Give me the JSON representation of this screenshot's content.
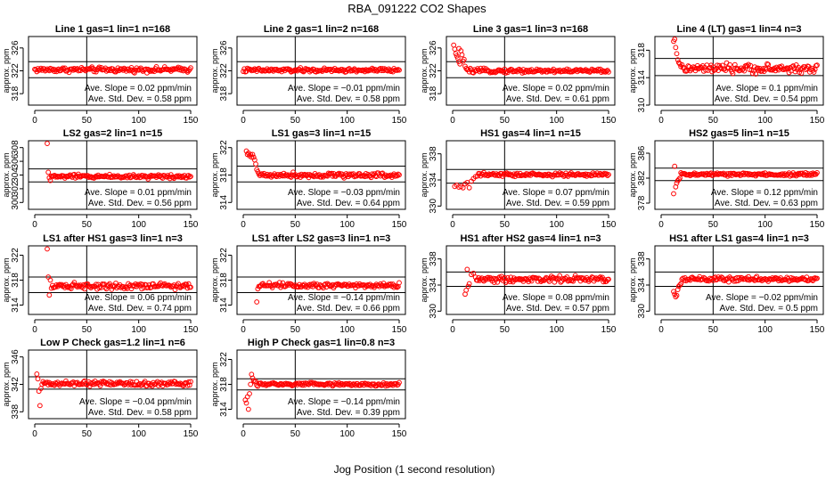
{
  "figure": {
    "title": "RBA_091222  CO2 Shapes",
    "xlabel": "Jog Position (1 second resolution)"
  },
  "chart_data": [
    {
      "type": "scatter",
      "title": "Line 1 gas=1 lin=1 n=168",
      "ylabel": "approx. ppm",
      "xlim": [
        0,
        150
      ],
      "xticks": [
        0,
        50,
        100,
        150
      ],
      "ylim": [
        316,
        328
      ],
      "yticks": [
        318,
        322,
        326
      ],
      "hlines": [
        320.8,
        323.6
      ],
      "vline": 50,
      "baseline": 322.2,
      "noise": 0.3,
      "transient": [],
      "slope_label": "Ave. Slope =  0.02  ppm/min",
      "sd_label": "Ave. Std. Dev. =  0.58  ppm"
    },
    {
      "type": "scatter",
      "title": "Line 2 gas=1 lin=2 n=168",
      "ylabel": "approx. ppm",
      "xlim": [
        0,
        150
      ],
      "xticks": [
        0,
        50,
        100,
        150
      ],
      "ylim": [
        316,
        328
      ],
      "yticks": [
        318,
        322,
        326
      ],
      "hlines": [
        320.8,
        323.6
      ],
      "vline": 50,
      "baseline": 322.1,
      "noise": 0.25,
      "transient": [],
      "slope_label": "Ave. Slope =  −0.01  ppm/min",
      "sd_label": "Ave. Std. Dev. =  0.58  ppm"
    },
    {
      "type": "scatter",
      "title": "Line 3 gas=1 lin=3 n=168",
      "ylabel": "approx. ppm",
      "xlim": [
        0,
        150
      ],
      "xticks": [
        0,
        50,
        100,
        150
      ],
      "ylim": [
        316,
        328
      ],
      "yticks": [
        318,
        322,
        326
      ],
      "hlines": [
        320.8,
        323.6
      ],
      "vline": 50,
      "baseline": 322.0,
      "noise": 0.25,
      "transient": [
        [
          1,
          326.5
        ],
        [
          2,
          325.8
        ],
        [
          3,
          325.0
        ],
        [
          4,
          324.6
        ],
        [
          5,
          324.2
        ],
        [
          6,
          323.6
        ],
        [
          6,
          325.9
        ],
        [
          7,
          323.2
        ],
        [
          8,
          325.5
        ],
        [
          9,
          324.8
        ],
        [
          10,
          323.7
        ],
        [
          11,
          324.0
        ],
        [
          12,
          322.8
        ],
        [
          13,
          322.4
        ],
        [
          14,
          322.2
        ]
      ],
      "slope_label": "Ave. Slope =  0.02  ppm/min",
      "sd_label": "Ave. Std. Dev. =  0.61  ppm"
    },
    {
      "type": "scatter",
      "title": "Line 4 (LT) gas=1 lin=4 n=3",
      "ylabel": "approx. ppm",
      "xlim": [
        0,
        150
      ],
      "xticks": [
        0,
        50,
        100,
        150
      ],
      "ylim": [
        310,
        320
      ],
      "yticks": [
        310,
        314,
        318
      ],
      "hlines": [
        314.3,
        316.8
      ],
      "vline": 50,
      "baseline": 315.3,
      "noise": 0.45,
      "transient": [
        [
          12,
          319.3
        ],
        [
          13,
          319.6
        ],
        [
          14,
          318.4
        ],
        [
          15,
          317.5
        ],
        [
          16,
          316.6
        ],
        [
          17,
          316.2
        ],
        [
          18,
          316.0
        ],
        [
          19,
          315.6
        ]
      ],
      "slope_label": "Ave. Slope =  0.1  ppm/min",
      "sd_label": "Ave. Std. Dev. =  0.54  ppm"
    },
    {
      "type": "scatter",
      "title": "LS2 gas=2 lin=1 n=15",
      "ylabel": "approx. ppm",
      "xlim": [
        0,
        150
      ],
      "xticks": [
        0,
        50,
        100,
        150
      ],
      "ylim": [
        299,
        309
      ],
      "yticks": [
        300,
        302,
        304,
        306,
        308
      ],
      "hlines": [
        303.0,
        304.9
      ],
      "vline": 50,
      "baseline": 303.8,
      "noise": 0.2,
      "transient": [
        [
          12,
          308.6
        ],
        [
          13,
          304.4
        ],
        [
          14,
          303.6
        ],
        [
          15,
          303.2
        ]
      ],
      "slope_label": "Ave. Slope =  0.01  ppm/min",
      "sd_label": "Ave. Std. Dev. =  0.56  ppm"
    },
    {
      "type": "scatter",
      "title": "LS1 gas=3 lin=1 n=15",
      "ylabel": "approx. ppm",
      "xlim": [
        0,
        150
      ],
      "xticks": [
        0,
        50,
        100,
        150
      ],
      "ylim": [
        313,
        323
      ],
      "yticks": [
        314,
        318,
        322
      ],
      "hlines": [
        317.0,
        319.3
      ],
      "vline": 50,
      "baseline": 318.0,
      "noise": 0.25,
      "transient": [
        [
          3,
          321.5
        ],
        [
          4,
          321.0
        ],
        [
          5,
          321.2
        ],
        [
          6,
          320.8
        ],
        [
          7,
          321.0
        ],
        [
          8,
          320.6
        ],
        [
          9,
          321.0
        ],
        [
          10,
          320.6
        ],
        [
          11,
          320.2
        ],
        [
          12,
          319.6
        ],
        [
          13,
          318.8
        ],
        [
          14,
          318.5
        ]
      ],
      "slope_label": "Ave. Slope =  −0.03  ppm/min",
      "sd_label": "Ave. Std. Dev. =  0.64  ppm"
    },
    {
      "type": "scatter",
      "title": "HS1 gas=4 lin=1 n=15",
      "ylabel": "approx. ppm",
      "xlim": [
        0,
        150
      ],
      "xticks": [
        0,
        50,
        100,
        150
      ],
      "ylim": [
        329.5,
        340
      ],
      "yticks": [
        330,
        334,
        338
      ],
      "hlines": [
        333.5,
        335.6
      ],
      "vline": 50,
      "baseline": 334.8,
      "noise": 0.2,
      "transient": [
        [
          2,
          333.0
        ],
        [
          4,
          333.2
        ],
        [
          6,
          332.9
        ],
        [
          8,
          333.0
        ],
        [
          10,
          332.8
        ],
        [
          12,
          333.4
        ],
        [
          14,
          333.6
        ],
        [
          16,
          332.8
        ],
        [
          18,
          333.8
        ],
        [
          20,
          334.2
        ],
        [
          22,
          334.5
        ],
        [
          24,
          334.6
        ]
      ],
      "slope_label": "Ave. Slope =  0.07  ppm/min",
      "sd_label": "Ave. Std. Dev. =  0.59  ppm"
    },
    {
      "type": "scatter",
      "title": "HS2 gas=5 lin=1 n=15",
      "ylabel": "approx. ppm",
      "xlim": [
        0,
        150
      ],
      "xticks": [
        0,
        50,
        100,
        150
      ],
      "ylim": [
        377,
        388
      ],
      "yticks": [
        378,
        382,
        386
      ],
      "hlines": [
        381.6,
        383.6
      ],
      "vline": 50,
      "baseline": 382.6,
      "noise": 0.2,
      "transient": [
        [
          12,
          379.5
        ],
        [
          13,
          383.9
        ],
        [
          14,
          380.6
        ],
        [
          15,
          381.2
        ],
        [
          16,
          381.6
        ],
        [
          17,
          381.8
        ],
        [
          18,
          382.0
        ]
      ],
      "slope_label": "Ave. Slope =  0.12  ppm/min",
      "sd_label": "Ave. Std. Dev. =  0.63  ppm"
    },
    {
      "type": "scatter",
      "title": "LS1 after HS1 gas=3 lin=1 n=3",
      "ylabel": "approx. ppm",
      "xlim": [
        0,
        150
      ],
      "xticks": [
        0,
        50,
        100,
        150
      ],
      "ylim": [
        312.5,
        323.5
      ],
      "yticks": [
        314,
        318,
        322
      ],
      "hlines": [
        316.0,
        318.5
      ],
      "vline": 50,
      "baseline": 317.1,
      "noise": 0.35,
      "transient": [
        [
          12,
          323.0
        ],
        [
          13,
          318.5
        ],
        [
          14,
          315.6
        ],
        [
          15,
          318.0
        ]
      ],
      "slope_label": "Ave. Slope =  0.06  ppm/min",
      "sd_label": "Ave. Std. Dev. =  0.74  ppm"
    },
    {
      "type": "scatter",
      "title": "LS1 after LS2 gas=3 lin=1 n=3",
      "ylabel": "approx. ppm",
      "xlim": [
        0,
        150
      ],
      "xticks": [
        0,
        50,
        100,
        150
      ],
      "ylim": [
        312.5,
        323.5
      ],
      "yticks": [
        314,
        318,
        322
      ],
      "hlines": [
        316.0,
        318.5
      ],
      "vline": 50,
      "baseline": 317.2,
      "noise": 0.3,
      "transient": [
        [
          13,
          314.5
        ],
        [
          14,
          316.6
        ],
        [
          15,
          317.0
        ]
      ],
      "slope_label": "Ave. Slope =  −0.14  ppm/min",
      "sd_label": "Ave. Std. Dev. =  0.66  ppm"
    },
    {
      "type": "scatter",
      "title": "HS1 after HS2 gas=4 lin=1 n=3",
      "ylabel": "approx. ppm",
      "xlim": [
        0,
        150
      ],
      "xticks": [
        0,
        50,
        100,
        150
      ],
      "ylim": [
        329.5,
        340
      ],
      "yticks": [
        330,
        334,
        338
      ],
      "hlines": [
        333.8,
        336.0
      ],
      "vline": 50,
      "baseline": 334.9,
      "noise": 0.35,
      "transient": [
        [
          12,
          332.6
        ],
        [
          13,
          333.2
        ],
        [
          14,
          336.4
        ],
        [
          15,
          333.8
        ],
        [
          16,
          334.2
        ],
        [
          18,
          335.6
        ],
        [
          20,
          335.8
        ],
        [
          22,
          335.2
        ]
      ],
      "slope_label": "Ave. Slope =  0.08  ppm/min",
      "sd_label": "Ave. Std. Dev. =  0.57  ppm"
    },
    {
      "type": "scatter",
      "title": "HS1 after LS1 gas=4 lin=1 n=3",
      "ylabel": "approx. ppm",
      "xlim": [
        0,
        150
      ],
      "xticks": [
        0,
        50,
        100,
        150
      ],
      "ylim": [
        329.5,
        340
      ],
      "yticks": [
        330,
        334,
        338
      ],
      "hlines": [
        333.8,
        336.0
      ],
      "vline": 50,
      "baseline": 334.9,
      "noise": 0.25,
      "transient": [
        [
          12,
          333.0
        ],
        [
          13,
          332.6
        ],
        [
          14,
          332.2
        ],
        [
          15,
          332.4
        ],
        [
          16,
          333.3
        ],
        [
          17,
          333.8
        ],
        [
          18,
          334.0
        ],
        [
          19,
          334.2
        ]
      ],
      "slope_label": "Ave. Slope =  −0.02  ppm/min",
      "sd_label": "Ave. Std. Dev. =  0.5  ppm"
    },
    {
      "type": "scatter",
      "title": "Low P Check gas=1.2 lin=1 n=6",
      "ylabel": "approx. ppm",
      "xlim": [
        0,
        150
      ],
      "xticks": [
        0,
        50,
        100,
        150
      ],
      "ylim": [
        337,
        347
      ],
      "yticks": [
        338,
        342,
        346
      ],
      "hlines": [
        341.3,
        343.1
      ],
      "vline": 50,
      "baseline": 342.1,
      "noise": 0.25,
      "transient": [
        [
          2,
          343.5
        ],
        [
          3,
          342.8
        ],
        [
          4,
          341.0
        ],
        [
          5,
          338.9
        ],
        [
          6,
          341.4
        ],
        [
          7,
          342.0
        ],
        [
          8,
          342.4
        ]
      ],
      "slope_label": "Ave. Slope =  −0.04  ppm/min",
      "sd_label": "Ave. Std. Dev. =  0.58  ppm"
    },
    {
      "type": "scatter",
      "title": "High P Check gas=1 lin=0.8 n=3",
      "ylabel": "approx. ppm",
      "xlim": [
        0,
        150
      ],
      "xticks": [
        0,
        50,
        100,
        150
      ],
      "ylim": [
        312.5,
        323.5
      ],
      "yticks": [
        314,
        318,
        322
      ],
      "hlines": [
        317.1,
        318.9
      ],
      "vline": 50,
      "baseline": 318.0,
      "noise": 0.2,
      "transient": [
        [
          2,
          315.5
        ],
        [
          3,
          315.0
        ],
        [
          4,
          316.0
        ],
        [
          5,
          314.0
        ],
        [
          6,
          316.5
        ],
        [
          7,
          318.0
        ],
        [
          8,
          319.6
        ],
        [
          9,
          319.0
        ],
        [
          10,
          318.6
        ],
        [
          11,
          318.4
        ],
        [
          12,
          318.5
        ]
      ],
      "slope_label": "Ave. Slope =  −0.14  ppm/min",
      "sd_label": "Ave. Std. Dev. =  0.39  ppm"
    }
  ]
}
